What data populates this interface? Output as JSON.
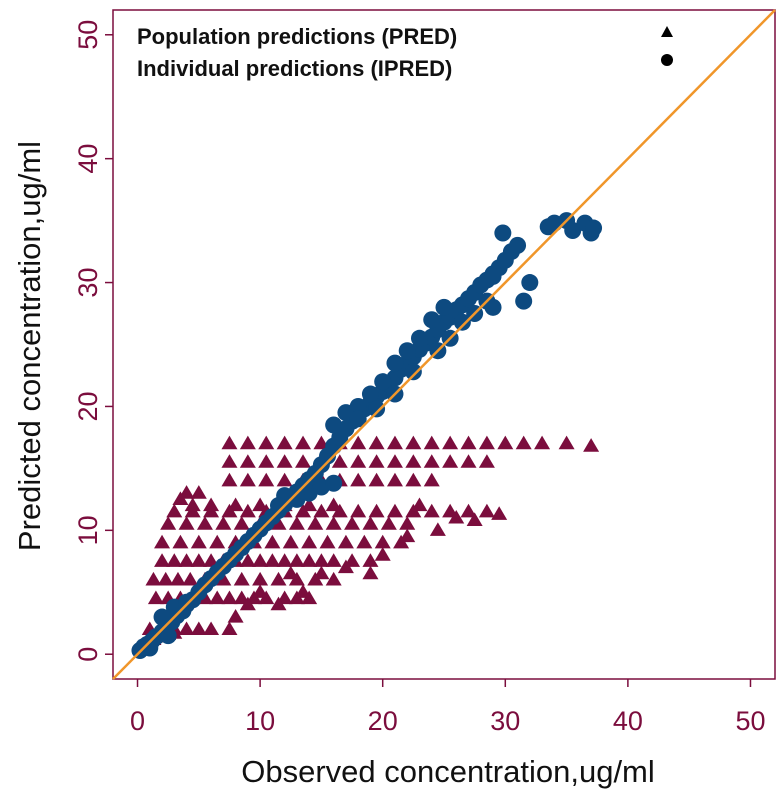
{
  "chart_data": {
    "type": "scatter",
    "title": "",
    "xlabel": "Observed concentration,ug/ml",
    "ylabel": "Predicted concentration,ug/ml",
    "xlim": [
      -2,
      52
    ],
    "ylim": [
      -2,
      52
    ],
    "xticks": [
      "0",
      "10",
      "20",
      "30",
      "40",
      "50"
    ],
    "yticks": [
      "0",
      "10",
      "20",
      "30",
      "40",
      "50"
    ],
    "grid": false,
    "legend_position": "top-left",
    "identity_line": {
      "from": [
        -2,
        -2
      ],
      "to": [
        52,
        52
      ],
      "color": "#f0962a"
    },
    "series": [
      {
        "name": "Population predictions (PRED)",
        "marker": "triangle",
        "color": "#7b0d3d",
        "points": [
          [
            0.3,
            0.5
          ],
          [
            0.8,
            0.9
          ],
          [
            1.3,
            1.2
          ],
          [
            1.8,
            1.4
          ],
          [
            2.5,
            1.6
          ],
          [
            3.0,
            1.7
          ],
          [
            1.0,
            2.0
          ],
          [
            2.0,
            2.0
          ],
          [
            3.0,
            2.0
          ],
          [
            4.0,
            2.0
          ],
          [
            5.0,
            2.0
          ],
          [
            6.0,
            2.0
          ],
          [
            7.5,
            2.0
          ],
          [
            1.5,
            4.5
          ],
          [
            2.5,
            4.5
          ],
          [
            3.5,
            4.5
          ],
          [
            4.5,
            4.5
          ],
          [
            5.5,
            4.5
          ],
          [
            6.5,
            4.5
          ],
          [
            7.5,
            4.5
          ],
          [
            8.5,
            4.5
          ],
          [
            9.5,
            4.5
          ],
          [
            10.5,
            4.5
          ],
          [
            12.0,
            4.5
          ],
          [
            13.0,
            4.5
          ],
          [
            14.0,
            4.5
          ],
          [
            1.3,
            6.0
          ],
          [
            2.3,
            6.0
          ],
          [
            3.3,
            6.0
          ],
          [
            4.3,
            6.0
          ],
          [
            5.5,
            6.0
          ],
          [
            7.0,
            6.0
          ],
          [
            8.5,
            6.0
          ],
          [
            10.0,
            6.0
          ],
          [
            11.5,
            6.0
          ],
          [
            13.0,
            6.0
          ],
          [
            14.5,
            6.0
          ],
          [
            16.0,
            6.0
          ],
          [
            2.0,
            7.5
          ],
          [
            3.0,
            7.5
          ],
          [
            4.0,
            7.5
          ],
          [
            5.0,
            7.5
          ],
          [
            6.0,
            7.5
          ],
          [
            7.0,
            7.5
          ],
          [
            8.0,
            7.5
          ],
          [
            9.0,
            7.5
          ],
          [
            10.0,
            7.5
          ],
          [
            11.0,
            7.5
          ],
          [
            12.0,
            7.5
          ],
          [
            13.0,
            7.5
          ],
          [
            14.0,
            7.5
          ],
          [
            15.0,
            7.5
          ],
          [
            16.0,
            7.5
          ],
          [
            17.5,
            7.5
          ],
          [
            19.0,
            7.5
          ],
          [
            2.0,
            9.0
          ],
          [
            3.5,
            9.0
          ],
          [
            5.0,
            9.0
          ],
          [
            6.5,
            9.0
          ],
          [
            8.0,
            9.0
          ],
          [
            9.5,
            9.0
          ],
          [
            11.0,
            9.0
          ],
          [
            12.5,
            9.0
          ],
          [
            14.0,
            9.0
          ],
          [
            15.5,
            9.0
          ],
          [
            17.0,
            9.0
          ],
          [
            18.5,
            9.0
          ],
          [
            20.0,
            9.0
          ],
          [
            21.5,
            9.0
          ],
          [
            2.5,
            10.5
          ],
          [
            4.0,
            10.5
          ],
          [
            5.5,
            10.5
          ],
          [
            7.0,
            10.5
          ],
          [
            8.5,
            10.5
          ],
          [
            10.0,
            10.5
          ],
          [
            11.5,
            10.5
          ],
          [
            13.0,
            10.5
          ],
          [
            14.5,
            10.5
          ],
          [
            16.0,
            10.5
          ],
          [
            17.5,
            10.5
          ],
          [
            19.0,
            10.5
          ],
          [
            20.5,
            10.5
          ],
          [
            22.0,
            10.5
          ],
          [
            3.0,
            11.5
          ],
          [
            4.5,
            11.5
          ],
          [
            6.0,
            11.5
          ],
          [
            7.5,
            11.5
          ],
          [
            9.0,
            11.5
          ],
          [
            10.5,
            11.5
          ],
          [
            12.0,
            11.5
          ],
          [
            13.5,
            11.5
          ],
          [
            15.0,
            11.5
          ],
          [
            16.5,
            11.5
          ],
          [
            18.0,
            11.5
          ],
          [
            19.5,
            11.5
          ],
          [
            21.0,
            11.5
          ],
          [
            22.5,
            11.5
          ],
          [
            24.0,
            11.5
          ],
          [
            25.5,
            11.5
          ],
          [
            27.0,
            11.5
          ],
          [
            28.5,
            11.5
          ],
          [
            29.5,
            11.3
          ],
          [
            7.5,
            14.0
          ],
          [
            9.0,
            14.0
          ],
          [
            10.5,
            14.0
          ],
          [
            12.0,
            14.0
          ],
          [
            13.5,
            14.0
          ],
          [
            15.0,
            14.0
          ],
          [
            16.5,
            14.0
          ],
          [
            18.0,
            14.0
          ],
          [
            19.5,
            14.0
          ],
          [
            21.0,
            14.0
          ],
          [
            22.5,
            14.0
          ],
          [
            24.0,
            14.0
          ],
          [
            7.5,
            15.5
          ],
          [
            9.0,
            15.5
          ],
          [
            10.5,
            15.5
          ],
          [
            12.0,
            15.5
          ],
          [
            13.5,
            15.5
          ],
          [
            15.0,
            15.5
          ],
          [
            16.5,
            15.5
          ],
          [
            18.0,
            15.5
          ],
          [
            19.5,
            15.5
          ],
          [
            21.0,
            15.5
          ],
          [
            22.5,
            15.5
          ],
          [
            24.0,
            15.5
          ],
          [
            25.5,
            15.5
          ],
          [
            27.0,
            15.5
          ],
          [
            28.5,
            15.5
          ],
          [
            7.5,
            17.0
          ],
          [
            9.0,
            17.0
          ],
          [
            10.5,
            17.0
          ],
          [
            12.0,
            17.0
          ],
          [
            13.5,
            17.0
          ],
          [
            15.0,
            17.0
          ],
          [
            16.5,
            17.0
          ],
          [
            18.0,
            17.0
          ],
          [
            19.5,
            17.0
          ],
          [
            21.0,
            17.0
          ],
          [
            22.5,
            17.0
          ],
          [
            24.0,
            17.0
          ],
          [
            25.5,
            17.0
          ],
          [
            27.0,
            17.0
          ],
          [
            28.5,
            17.0
          ],
          [
            30.0,
            17.0
          ],
          [
            31.5,
            17.0
          ],
          [
            33.0,
            17.0
          ],
          [
            35.0,
            17.0
          ],
          [
            37.0,
            16.8
          ],
          [
            4.5,
            12.0
          ],
          [
            6.0,
            12.0
          ],
          [
            8.0,
            12.0
          ],
          [
            10.0,
            12.0
          ],
          [
            12.0,
            12.0
          ],
          [
            14.0,
            12.0
          ],
          [
            16.0,
            12.0
          ],
          [
            5.0,
            13.0
          ],
          [
            4.0,
            13.0
          ],
          [
            3.5,
            12.5
          ],
          [
            8.0,
            3.0
          ],
          [
            9.0,
            4.0
          ],
          [
            11.5,
            4.0
          ],
          [
            13.5,
            5.0
          ],
          [
            15.0,
            6.5
          ],
          [
            17.0,
            7.0
          ],
          [
            20.0,
            8.0
          ],
          [
            22.0,
            9.5
          ],
          [
            24.5,
            10.0
          ],
          [
            26.0,
            11.0
          ],
          [
            27.5,
            10.8
          ],
          [
            23.0,
            12.0
          ],
          [
            12.5,
            6.5
          ],
          [
            10.0,
            5.0
          ],
          [
            19.0,
            6.5
          ]
        ]
      },
      {
        "name": "Individual predictions (IPRED)",
        "marker": "circle",
        "color": "#0d4a80",
        "points": [
          [
            0.2,
            0.3
          ],
          [
            0.5,
            0.6
          ],
          [
            0.8,
            0.8
          ],
          [
            1.2,
            1.1
          ],
          [
            1.5,
            1.4
          ],
          [
            2.0,
            1.8
          ],
          [
            2.3,
            2.2
          ],
          [
            2.8,
            2.6
          ],
          [
            3.2,
            3.1
          ],
          [
            3.7,
            3.5
          ],
          [
            4.0,
            4.0
          ],
          [
            4.5,
            4.4
          ],
          [
            5.0,
            5.0
          ],
          [
            5.5,
            5.6
          ],
          [
            6.0,
            6.1
          ],
          [
            6.5,
            6.6
          ],
          [
            7.0,
            7.1
          ],
          [
            7.5,
            7.6
          ],
          [
            8.0,
            8.1
          ],
          [
            8.5,
            8.6
          ],
          [
            9.0,
            9.1
          ],
          [
            9.5,
            9.6
          ],
          [
            10.0,
            10.1
          ],
          [
            10.5,
            10.6
          ],
          [
            11.0,
            11.1
          ],
          [
            11.5,
            11.6
          ],
          [
            12.0,
            12.1
          ],
          [
            12.5,
            12.6
          ],
          [
            13.0,
            13.1
          ],
          [
            13.5,
            13.6
          ],
          [
            14.0,
            14.1
          ],
          [
            14.5,
            14.6
          ],
          [
            15.0,
            15.3
          ],
          [
            15.5,
            16.0
          ],
          [
            16.0,
            16.8
          ],
          [
            16.5,
            17.5
          ],
          [
            17.0,
            18.2
          ],
          [
            17.5,
            18.8
          ],
          [
            18.0,
            19.4
          ],
          [
            18.5,
            19.8
          ],
          [
            19.0,
            20.3
          ],
          [
            19.5,
            20.8
          ],
          [
            20.0,
            21.2
          ],
          [
            20.5,
            21.8
          ],
          [
            21.0,
            22.3
          ],
          [
            21.5,
            23.0
          ],
          [
            22.0,
            23.5
          ],
          [
            22.5,
            24.0
          ],
          [
            23.0,
            24.6
          ],
          [
            23.5,
            25.1
          ],
          [
            24.0,
            25.6
          ],
          [
            24.5,
            26.2
          ],
          [
            25.0,
            26.8
          ],
          [
            25.5,
            27.2
          ],
          [
            26.0,
            27.8
          ],
          [
            26.5,
            28.2
          ],
          [
            27.0,
            28.7
          ],
          [
            27.5,
            29.2
          ],
          [
            28.0,
            29.8
          ],
          [
            28.5,
            30.2
          ],
          [
            29.0,
            30.7
          ],
          [
            29.5,
            31.2
          ],
          [
            30.0,
            31.8
          ],
          [
            16.0,
            18.5
          ],
          [
            17.0,
            19.5
          ],
          [
            18.0,
            20.0
          ],
          [
            19.0,
            21.0
          ],
          [
            20.0,
            22.0
          ],
          [
            21.0,
            23.5
          ],
          [
            22.0,
            24.5
          ],
          [
            23.0,
            25.5
          ],
          [
            24.0,
            27.0
          ],
          [
            25.0,
            28.0
          ],
          [
            18.0,
            19.0
          ],
          [
            19.5,
            19.8
          ],
          [
            21.0,
            21.0
          ],
          [
            22.5,
            22.8
          ],
          [
            24.5,
            24.5
          ],
          [
            25.5,
            25.5
          ],
          [
            26.5,
            26.8
          ],
          [
            27.5,
            27.5
          ],
          [
            28.5,
            28.5
          ],
          [
            29.0,
            28.0
          ],
          [
            31.5,
            28.5
          ],
          [
            32.0,
            30.0
          ],
          [
            30.5,
            32.5
          ],
          [
            31.0,
            33.0
          ],
          [
            29.8,
            34.0
          ],
          [
            29.0,
            30.5
          ],
          [
            33.5,
            34.5
          ],
          [
            34.0,
            34.8
          ],
          [
            35.0,
            35.0
          ],
          [
            35.5,
            34.2
          ],
          [
            36.5,
            34.8
          ],
          [
            37.0,
            34.0
          ],
          [
            37.2,
            34.4
          ],
          [
            12.0,
            12.8
          ],
          [
            13.0,
            12.5
          ],
          [
            14.0,
            13.0
          ],
          [
            15.0,
            13.5
          ],
          [
            16.0,
            13.8
          ],
          [
            13.5,
            13.2
          ],
          [
            11.5,
            12.0
          ],
          [
            2.0,
            3.0
          ],
          [
            3.0,
            3.8
          ],
          [
            4.0,
            4.2
          ],
          [
            2.5,
            1.5
          ],
          [
            1.0,
            0.5
          ]
        ]
      }
    ]
  }
}
